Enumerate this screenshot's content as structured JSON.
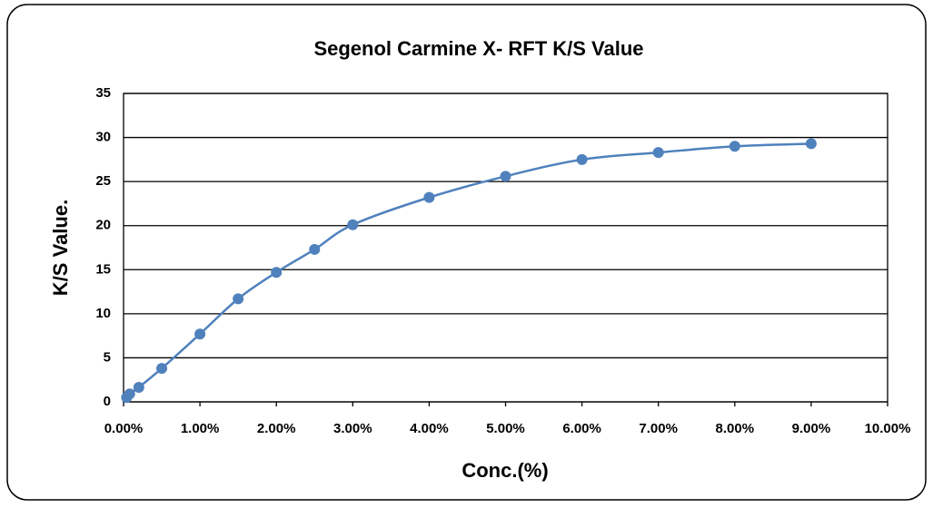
{
  "chart_data": {
    "type": "scatter",
    "title": "Segenol Carmine X- RFT K/S Value",
    "x_label": "Conc.(%)",
    "y_label": "K/S Value.",
    "series": [
      {
        "name": "K/S",
        "color": "#4f81bd",
        "x": [
          0.04,
          0.08,
          0.2,
          0.5,
          1,
          1.5,
          2,
          2.5,
          3,
          4,
          5,
          6,
          7,
          8,
          9
        ],
        "values": [
          0.5,
          0.9,
          1.65,
          3.8,
          7.7,
          11.7,
          14.7,
          17.3,
          20.1,
          23.2,
          25.6,
          27.5,
          28.3,
          29.0,
          29.3
        ]
      }
    ],
    "smooth": true,
    "xlim": [
      0,
      10
    ],
    "xticks": [
      {
        "value": 0,
        "label": "0.00%"
      },
      {
        "value": 1,
        "label": "1.00%"
      },
      {
        "value": 2,
        "label": "2.00%"
      },
      {
        "value": 3,
        "label": "3.00%"
      },
      {
        "value": 4,
        "label": "4.00%"
      },
      {
        "value": 5,
        "label": "5.00%"
      },
      {
        "value": 6,
        "label": "6.00%"
      },
      {
        "value": 7,
        "label": "7.00%"
      },
      {
        "value": 8,
        "label": "8.00%"
      },
      {
        "value": 9,
        "label": "9.00%"
      },
      {
        "value": 10,
        "label": "10.00%"
      }
    ],
    "ylim": [
      0,
      35
    ],
    "yticks": [
      0,
      5,
      10,
      15,
      20,
      25,
      30,
      35
    ],
    "grid": true
  }
}
